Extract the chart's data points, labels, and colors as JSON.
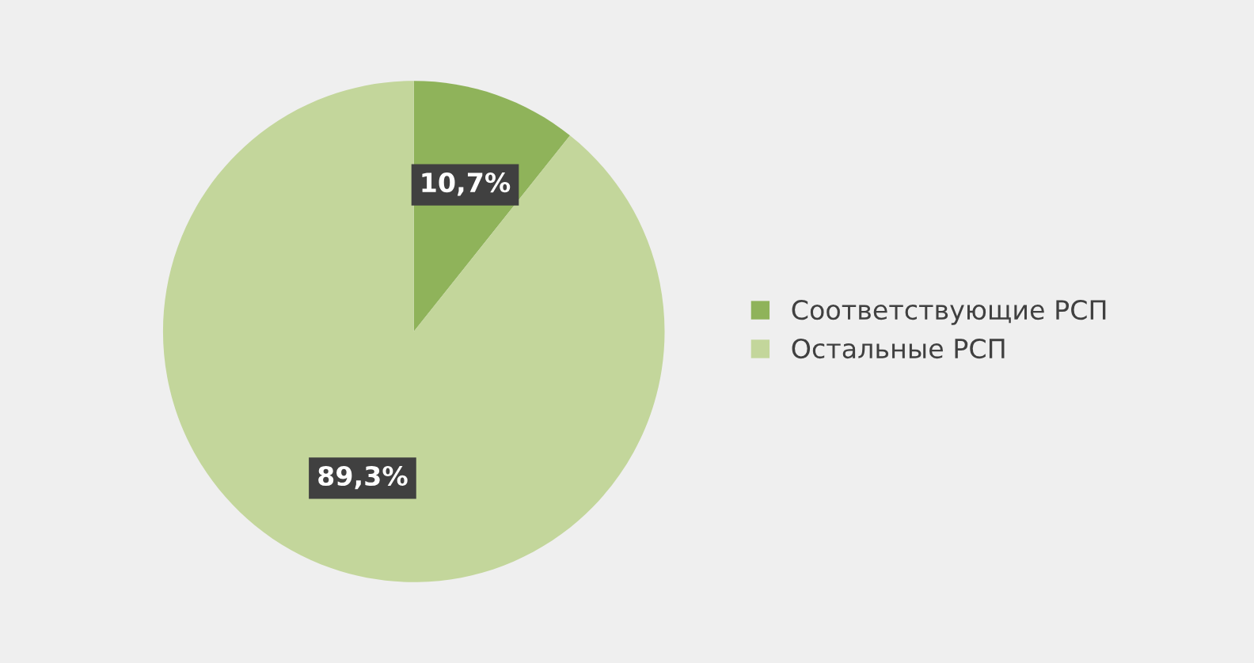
{
  "chart_data": {
    "type": "pie",
    "categories": [
      "Соответствующие РСП",
      "Остальные РСП"
    ],
    "values": [
      10.7,
      89.3
    ],
    "colors": [
      "#8fb35a",
      "#c3d69b"
    ],
    "value_labels": [
      "10,7%",
      "89,3%"
    ],
    "legend": "right"
  }
}
